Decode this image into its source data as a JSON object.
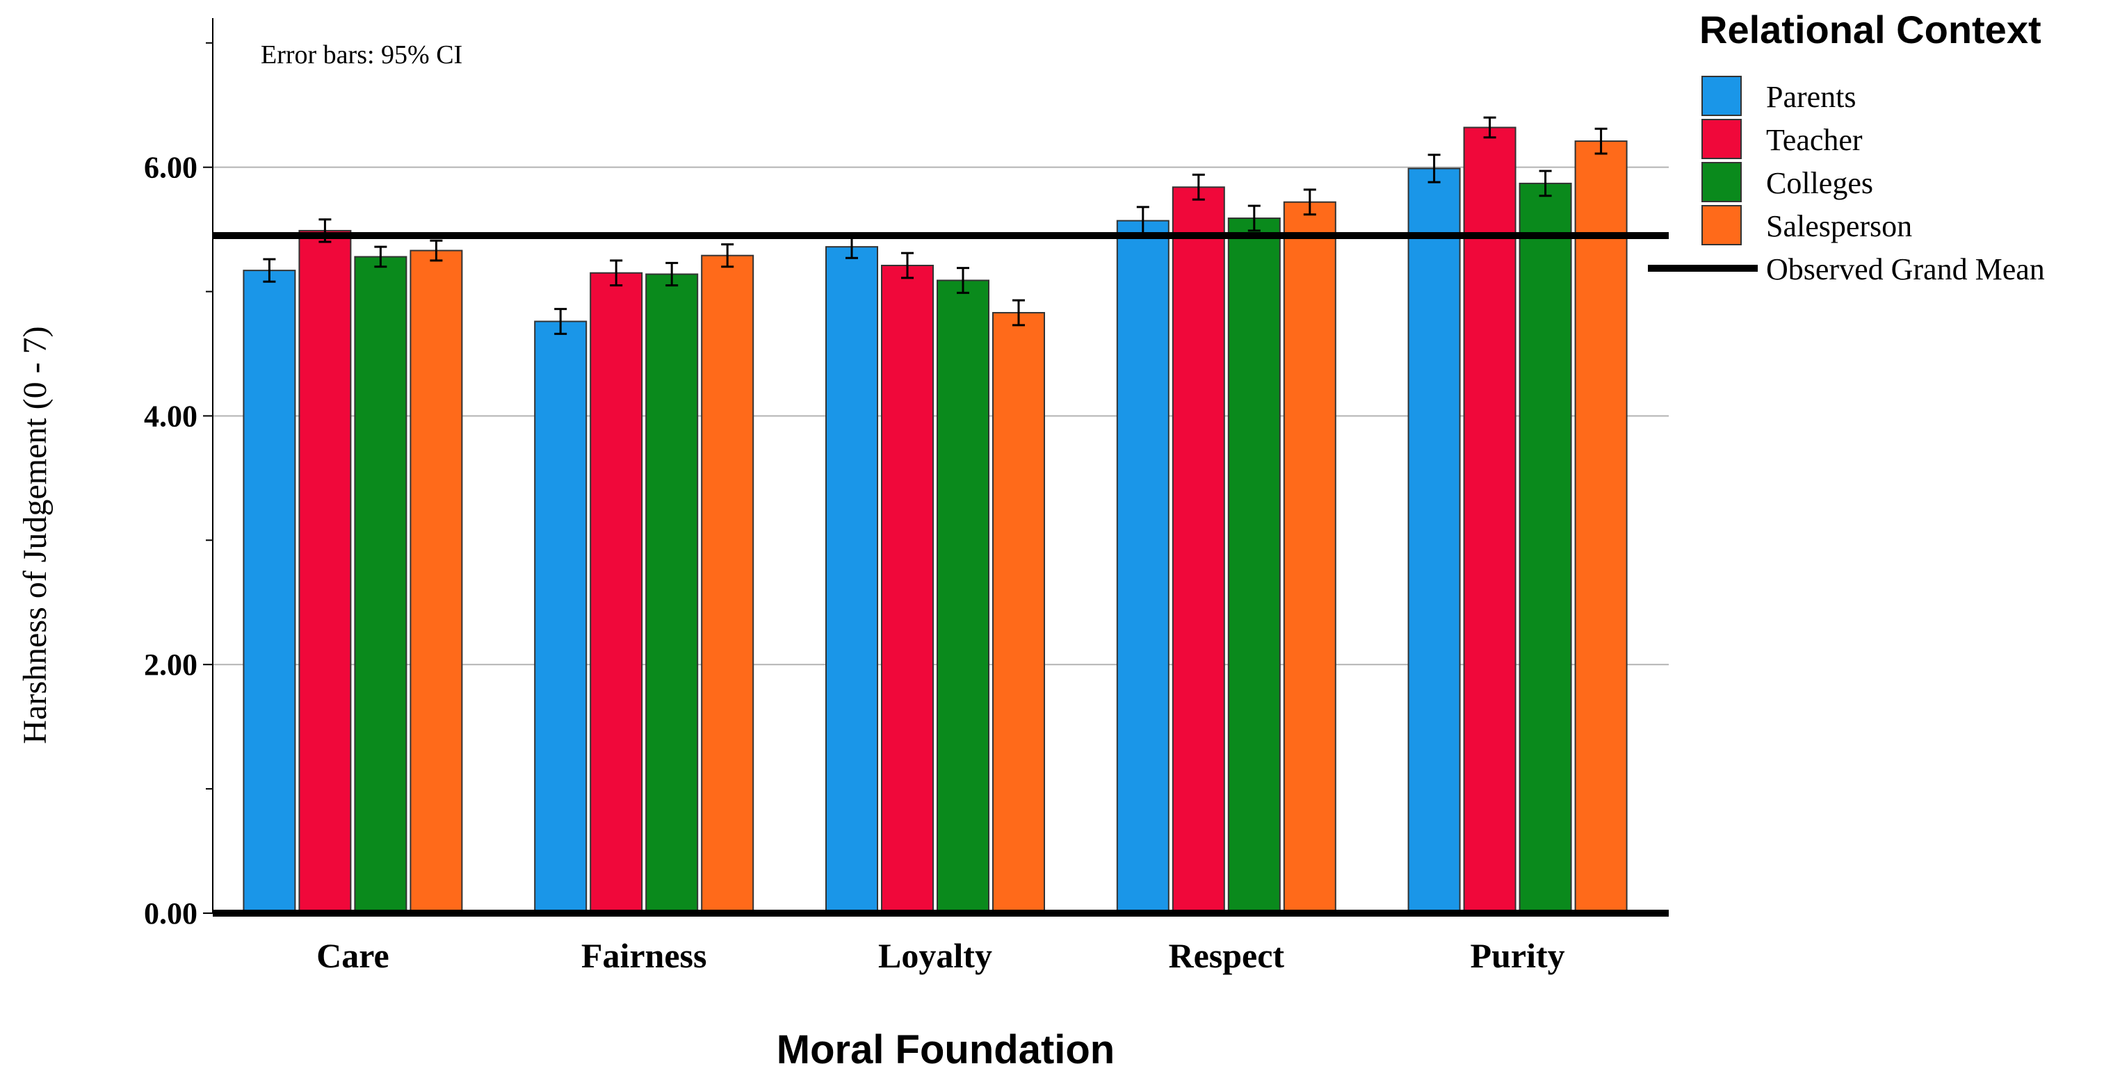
{
  "chart_data": {
    "type": "bar",
    "title": "",
    "xlabel": "Moral Foundation",
    "ylabel": "Harshness of Judgement (0 - 7)",
    "ylim": [
      0,
      7.2
    ],
    "yticks": [
      0,
      2,
      4,
      6
    ],
    "ytick_labels": [
      "0.00",
      "2.00",
      "4.00",
      "6.00"
    ],
    "minor_yticks": [
      1,
      3,
      5,
      7
    ],
    "grid": true,
    "categories": [
      "Care",
      "Fairness",
      "Loyalty",
      "Respect",
      "Purity"
    ],
    "series": [
      {
        "name": "Parents",
        "color": "#1a96e8",
        "values": [
          5.17,
          4.76,
          5.36,
          5.57,
          5.99
        ],
        "ci": [
          0.09,
          0.1,
          0.09,
          0.11,
          0.11
        ]
      },
      {
        "name": "Teacher",
        "color": "#f0083a",
        "values": [
          5.49,
          5.15,
          5.21,
          5.84,
          6.32
        ],
        "ci": [
          0.09,
          0.1,
          0.1,
          0.1,
          0.08
        ]
      },
      {
        "name": "Colleges",
        "color": "#0a8a1c",
        "values": [
          5.28,
          5.14,
          5.09,
          5.59,
          5.87
        ],
        "ci": [
          0.08,
          0.09,
          0.1,
          0.1,
          0.1
        ]
      },
      {
        "name": "Salesperson",
        "color": "#ff6a1a",
        "values": [
          5.33,
          5.29,
          4.83,
          5.72,
          6.21
        ],
        "ci": [
          0.08,
          0.09,
          0.1,
          0.1,
          0.1
        ]
      }
    ],
    "reference_line": {
      "name": "Observed Grand Mean",
      "value": 5.45
    },
    "legend": {
      "title": "Relational Context",
      "position": "right"
    },
    "annotation": "Error bars: 95% CI"
  }
}
